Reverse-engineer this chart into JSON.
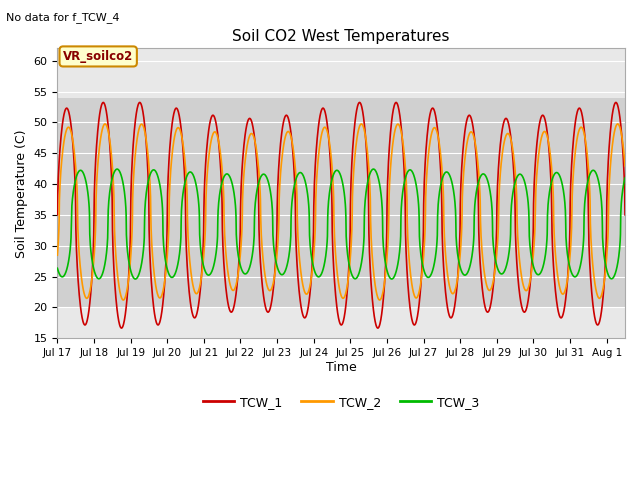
{
  "title": "Soil CO2 West Temperatures",
  "subtitle": "No data for f_TCW_4",
  "ylabel": "Soil Temperature (C)",
  "xlabel": "Time",
  "ylim": [
    15,
    62
  ],
  "xlim": [
    0.0,
    15.5
  ],
  "yticks": [
    15,
    20,
    25,
    30,
    35,
    40,
    45,
    50,
    55,
    60
  ],
  "xtick_labels": [
    "Jul 17",
    "Jul 18",
    "Jul 19",
    "Jul 20",
    "Jul 21",
    "Jul 22",
    "Jul 23",
    "Jul 24",
    "Jul 25",
    "Jul 26",
    "Jul 27",
    "Jul 28",
    "Jul 29",
    "Jul 30",
    "Jul 31",
    "Aug 1"
  ],
  "shaded_ymin": 20,
  "shaded_ymax": 54,
  "legend_label": "VR_soilco2",
  "series_colors": [
    "#cc0000",
    "#ff9900",
    "#00bb00"
  ],
  "series_names": [
    "TCW_1",
    "TCW_2",
    "TCW_3"
  ],
  "plot_bg_color": "#e8e8e8",
  "shaded_color": "#d0d0d0"
}
